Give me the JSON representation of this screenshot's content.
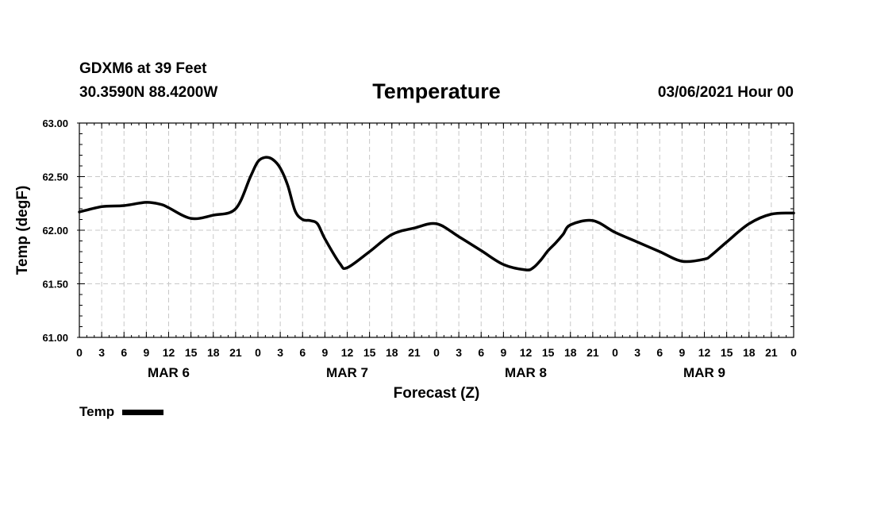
{
  "header": {
    "station": "GDXM6 at 39 Feet",
    "coords": "30.3590N 88.4200W",
    "title": "Temperature",
    "datetime": "03/06/2021 Hour 00"
  },
  "chart_data": {
    "type": "line",
    "title": "Temperature",
    "xlabel": "Forecast (Z)",
    "ylabel": "Temp (degF)",
    "ylim": [
      61.0,
      63.0
    ],
    "yticks": [
      "61.00",
      "61.50",
      "62.00",
      "62.50",
      "63.00"
    ],
    "xlim": [
      0,
      96
    ],
    "xtick_labels": [
      "0",
      "3",
      "6",
      "9",
      "12",
      "15",
      "18",
      "21",
      "0",
      "3",
      "6",
      "9",
      "12",
      "15",
      "18",
      "21",
      "0",
      "3",
      "6",
      "9",
      "12",
      "15",
      "18",
      "21",
      "0",
      "3",
      "6",
      "9",
      "12",
      "15",
      "18",
      "21",
      "0"
    ],
    "day_labels": [
      {
        "label": "MAR 6",
        "hour": 12
      },
      {
        "label": "MAR 7",
        "hour": 36
      },
      {
        "label": "MAR 8",
        "hour": 60
      },
      {
        "label": "MAR 9",
        "hour": 84
      }
    ],
    "grid": true,
    "legend_position": "bottom-left",
    "series": [
      {
        "name": "Temp",
        "color": "#000000",
        "x": [
          0,
          3,
          6,
          9,
          11,
          12,
          15,
          18,
          21,
          23,
          24,
          25,
          26,
          27,
          28,
          29,
          30,
          31,
          32,
          33,
          35,
          36,
          39,
          42,
          45,
          48,
          51,
          54,
          57,
          60,
          61,
          62,
          63,
          64,
          65,
          66,
          69,
          72,
          75,
          78,
          81,
          84,
          85,
          87,
          90,
          93,
          96
        ],
        "y": [
          62.17,
          62.22,
          62.23,
          62.26,
          62.24,
          62.21,
          62.11,
          62.14,
          62.2,
          62.5,
          62.64,
          62.68,
          62.66,
          62.58,
          62.42,
          62.18,
          62.1,
          62.09,
          62.06,
          61.92,
          61.69,
          61.65,
          61.8,
          61.96,
          62.02,
          62.06,
          61.94,
          61.81,
          61.68,
          61.63,
          61.65,
          61.72,
          61.81,
          61.88,
          61.96,
          62.05,
          62.09,
          61.98,
          61.89,
          61.8,
          61.71,
          61.73,
          61.77,
          61.89,
          62.06,
          62.15,
          62.16
        ]
      }
    ]
  }
}
